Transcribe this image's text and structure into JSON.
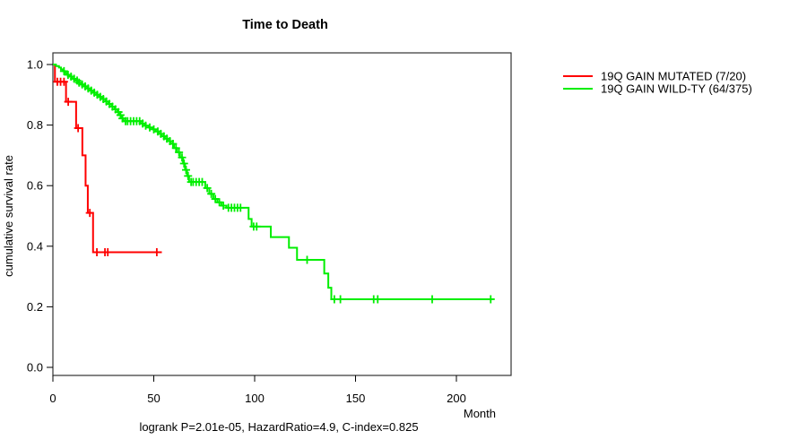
{
  "chart_data": {
    "type": "line",
    "subtype": "kaplan-meier-step",
    "title": "Time to Death",
    "xlabel": "Month",
    "ylabel": "cumulative survival rate",
    "annotation": "logrank P=2.01e-05, HazardRatio=4.9, C-index=0.825",
    "xlim": [
      0,
      227
    ],
    "ylim": [
      0.0,
      1.0
    ],
    "xticks": [
      0,
      50,
      100,
      150,
      200
    ],
    "yticks": [
      0.0,
      0.2,
      0.4,
      0.6,
      0.8,
      1.0
    ],
    "grid": false,
    "legend_position": "right",
    "legend": [
      {
        "label": "19Q GAIN MUTATED (7/20)",
        "color": "#ff0000"
      },
      {
        "label": "19Q GAIN WILD-TY (64/375)",
        "color": "#00ee00"
      }
    ],
    "series": [
      {
        "name": "19Q GAIN MUTATED (7/20)",
        "color": "#ff0000",
        "end_month": 54,
        "steps": [
          [
            0,
            1.0
          ],
          [
            1,
            0.943
          ],
          [
            6.5,
            0.877
          ],
          [
            11.5,
            0.79
          ],
          [
            14.6,
            0.7
          ],
          [
            16.2,
            0.6
          ],
          [
            17.3,
            0.51
          ],
          [
            19.9,
            0.38
          ]
        ],
        "censor_months": [
          2.2,
          3.8,
          5.5,
          7.6,
          12.5,
          18.3,
          21.8,
          25.8,
          27.2,
          51.5
        ]
      },
      {
        "name": "19Q GAIN WILD-TY (64/375)",
        "color": "#00ee00",
        "end_month": 218,
        "steps": [
          [
            0,
            1.0
          ],
          [
            1.5,
            0.995
          ],
          [
            3,
            0.99
          ],
          [
            4,
            0.984
          ],
          [
            5,
            0.978
          ],
          [
            6,
            0.972
          ],
          [
            7,
            0.966
          ],
          [
            8,
            0.96
          ],
          [
            9.5,
            0.953
          ],
          [
            11,
            0.947
          ],
          [
            12.5,
            0.94
          ],
          [
            14,
            0.934
          ],
          [
            15.5,
            0.928
          ],
          [
            17,
            0.921
          ],
          [
            18.5,
            0.914
          ],
          [
            20,
            0.907
          ],
          [
            21.5,
            0.9
          ],
          [
            23,
            0.893
          ],
          [
            24.5,
            0.886
          ],
          [
            26,
            0.878
          ],
          [
            27.5,
            0.87
          ],
          [
            29,
            0.861
          ],
          [
            30.5,
            0.852
          ],
          [
            32,
            0.843
          ],
          [
            33,
            0.833
          ],
          [
            34,
            0.822
          ],
          [
            35,
            0.813
          ],
          [
            43.5,
            0.805
          ],
          [
            45.5,
            0.798
          ],
          [
            47.5,
            0.792
          ],
          [
            49.5,
            0.786
          ],
          [
            51,
            0.779
          ],
          [
            52.5,
            0.771
          ],
          [
            54,
            0.763
          ],
          [
            55.5,
            0.755
          ],
          [
            57,
            0.747
          ],
          [
            58.5,
            0.738
          ],
          [
            60,
            0.724
          ],
          [
            61.5,
            0.71
          ],
          [
            63,
            0.693
          ],
          [
            64.5,
            0.673
          ],
          [
            65.5,
            0.652
          ],
          [
            66.5,
            0.632
          ],
          [
            67.5,
            0.612
          ],
          [
            75.5,
            0.592
          ],
          [
            77.5,
            0.573
          ],
          [
            79.5,
            0.556
          ],
          [
            81.5,
            0.545
          ],
          [
            83.5,
            0.534
          ],
          [
            86,
            0.527
          ],
          [
            97,
            0.49
          ],
          [
            98.5,
            0.465
          ],
          [
            108,
            0.43
          ],
          [
            117,
            0.395
          ],
          [
            121,
            0.355
          ],
          [
            134.5,
            0.31
          ],
          [
            136.5,
            0.263
          ],
          [
            138,
            0.225
          ]
        ],
        "censor_months": [
          5.5,
          7.5,
          9,
          10.5,
          12,
          13,
          14.5,
          16,
          17.5,
          19,
          20.5,
          22,
          23.5,
          25,
          26.5,
          28,
          29.5,
          31,
          32.5,
          33.5,
          34.5,
          36,
          37,
          38.5,
          40,
          41.5,
          43,
          44.5,
          46,
          48,
          50,
          52,
          53.5,
          55,
          56.5,
          58,
          59.5,
          61,
          62.5,
          64,
          65,
          66,
          67,
          68.5,
          69.5,
          71,
          72.5,
          74,
          76.5,
          78.5,
          80.5,
          82.5,
          84.5,
          87,
          88.5,
          90,
          91.5,
          93,
          99.5,
          101,
          126,
          139.5,
          142.5,
          159,
          161,
          188,
          217
        ]
      }
    ]
  }
}
